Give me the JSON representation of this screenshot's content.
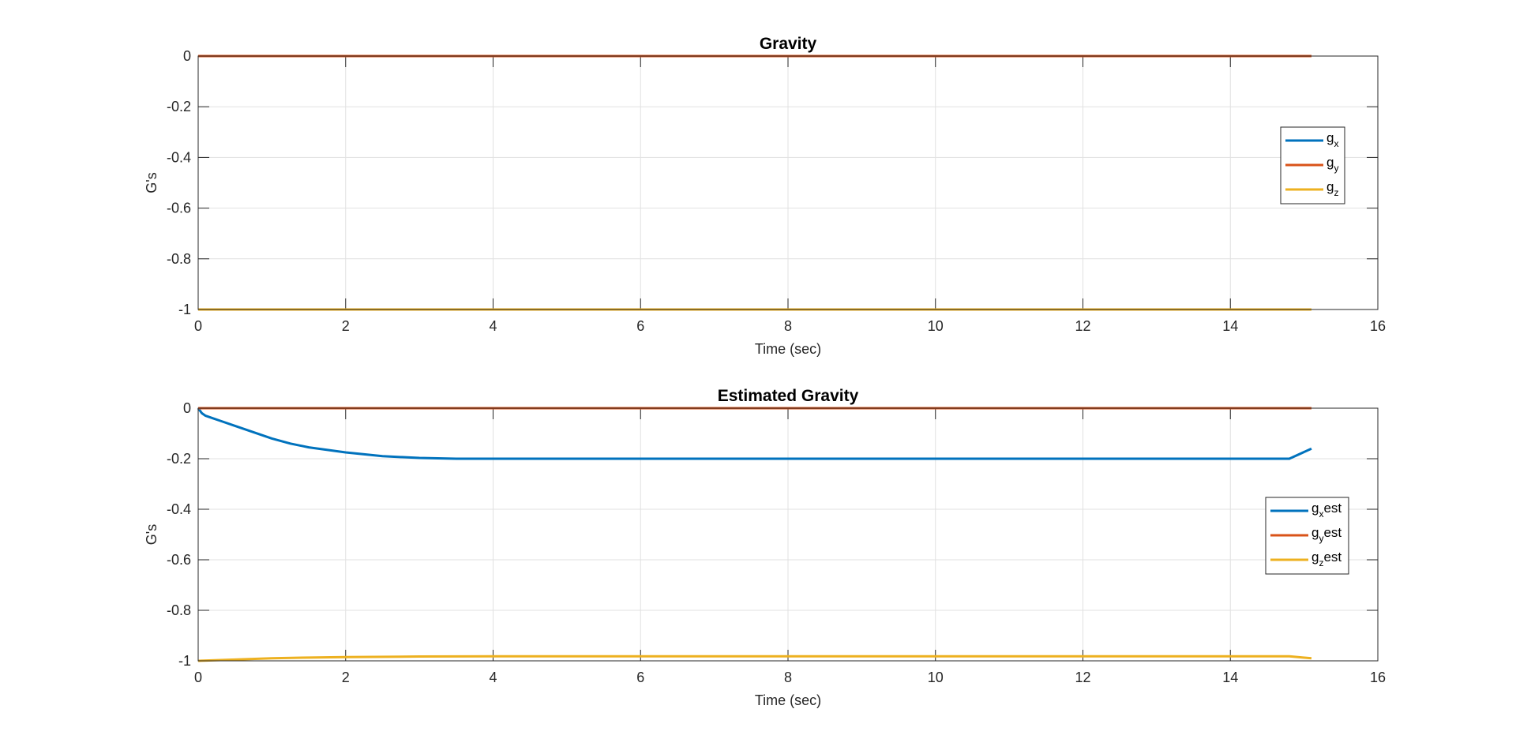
{
  "colors": {
    "series1": "#0072BD",
    "series2": "#D95319",
    "series3": "#EDB120",
    "grid": "#e1e1e1",
    "axis": "#262626",
    "background": "#ffffff"
  },
  "chart_data": [
    {
      "type": "line",
      "title": "Gravity",
      "xlabel": "Time (sec)",
      "ylabel": "G's",
      "xlim": [
        0,
        16
      ],
      "ylim": [
        -1,
        0
      ],
      "xticks": [
        "0",
        "2",
        "4",
        "6",
        "8",
        "10",
        "12",
        "14",
        "16"
      ],
      "yticks": [
        "0",
        "-0.2",
        "-0.4",
        "-0.6",
        "-0.8",
        "-1"
      ],
      "grid": true,
      "legend_position": "right",
      "series": [
        {
          "name": "gx",
          "legend_base": "g",
          "legend_sub": "x",
          "legend_suffix": "",
          "x": [
            0,
            15.1
          ],
          "y": [
            0,
            0
          ]
        },
        {
          "name": "gy",
          "legend_base": "g",
          "legend_sub": "y",
          "legend_suffix": "",
          "x": [
            0,
            15.1
          ],
          "y": [
            0,
            0
          ]
        },
        {
          "name": "gz",
          "legend_base": "g",
          "legend_sub": "z",
          "legend_suffix": "",
          "x": [
            0,
            15.1
          ],
          "y": [
            -1,
            -1
          ]
        }
      ]
    },
    {
      "type": "line",
      "title": "Estimated Gravity",
      "xlabel": "Time (sec)",
      "ylabel": "G's",
      "xlim": [
        0,
        16
      ],
      "ylim": [
        -1,
        0
      ],
      "xticks": [
        "0",
        "2",
        "4",
        "6",
        "8",
        "10",
        "12",
        "14",
        "16"
      ],
      "yticks": [
        "0",
        "-0.2",
        "-0.4",
        "-0.6",
        "-0.8",
        "-1"
      ],
      "grid": true,
      "legend_position": "right",
      "series": [
        {
          "name": "gx est",
          "legend_base": "g",
          "legend_sub": "x",
          "legend_suffix": "est",
          "x": [
            0,
            0.05,
            0.1,
            0.2,
            0.3,
            0.5,
            0.75,
            1,
            1.25,
            1.5,
            2,
            2.5,
            3,
            3.5,
            4,
            5,
            6,
            7,
            8,
            9,
            10,
            11,
            12,
            13,
            14,
            14.8,
            15.1
          ],
          "y": [
            0,
            -0.02,
            -0.03,
            -0.04,
            -0.05,
            -0.07,
            -0.095,
            -0.12,
            -0.14,
            -0.155,
            -0.175,
            -0.19,
            -0.197,
            -0.2,
            -0.2,
            -0.2,
            -0.2,
            -0.2,
            -0.2,
            -0.2,
            -0.2,
            -0.2,
            -0.2,
            -0.2,
            -0.2,
            -0.2,
            -0.16
          ]
        },
        {
          "name": "gy est",
          "legend_base": "g",
          "legend_sub": "y",
          "legend_suffix": "est",
          "x": [
            0,
            15.1
          ],
          "y": [
            0,
            0
          ]
        },
        {
          "name": "gz est",
          "legend_base": "g",
          "legend_sub": "z",
          "legend_suffix": "est",
          "x": [
            0,
            0.5,
            1,
            1.5,
            2,
            3,
            4,
            6,
            8,
            10,
            12,
            14,
            14.8,
            15.1
          ],
          "y": [
            -1,
            -0.995,
            -0.99,
            -0.987,
            -0.985,
            -0.983,
            -0.982,
            -0.982,
            -0.982,
            -0.982,
            -0.982,
            -0.982,
            -0.982,
            -0.99
          ]
        }
      ]
    }
  ]
}
